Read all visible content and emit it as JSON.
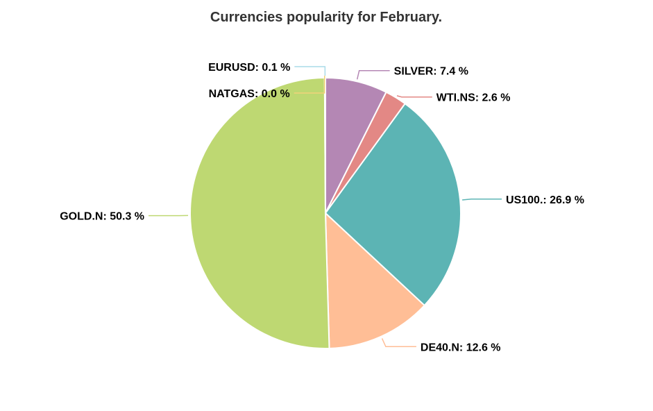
{
  "chart_data": {
    "type": "pie",
    "title": "Currencies popularity for February.",
    "series": [
      {
        "categories": [
          "SILVER",
          "WTI.NS",
          "US100.",
          "DE40.N",
          "GOLD.N",
          "NATGAS",
          "EURUSD"
        ],
        "values": [
          7.4,
          2.6,
          26.9,
          12.6,
          50.3,
          0.0,
          0.1
        ],
        "labels": [
          "SILVER: 7.4 %",
          "WTI.NS: 2.6 %",
          "US100.: 26.9 %",
          "DE40.N: 12.6 %",
          "GOLD.N: 50.3 %",
          "NATGAS: 0.0 %",
          "EURUSD: 0.1 %"
        ],
        "colors": [
          "#b487b4",
          "#e38885",
          "#5cb4b4",
          "#ffbe96",
          "#bed872",
          "#f2d27a",
          "#a9dbe9"
        ]
      }
    ],
    "legend": "none",
    "grid": false
  }
}
